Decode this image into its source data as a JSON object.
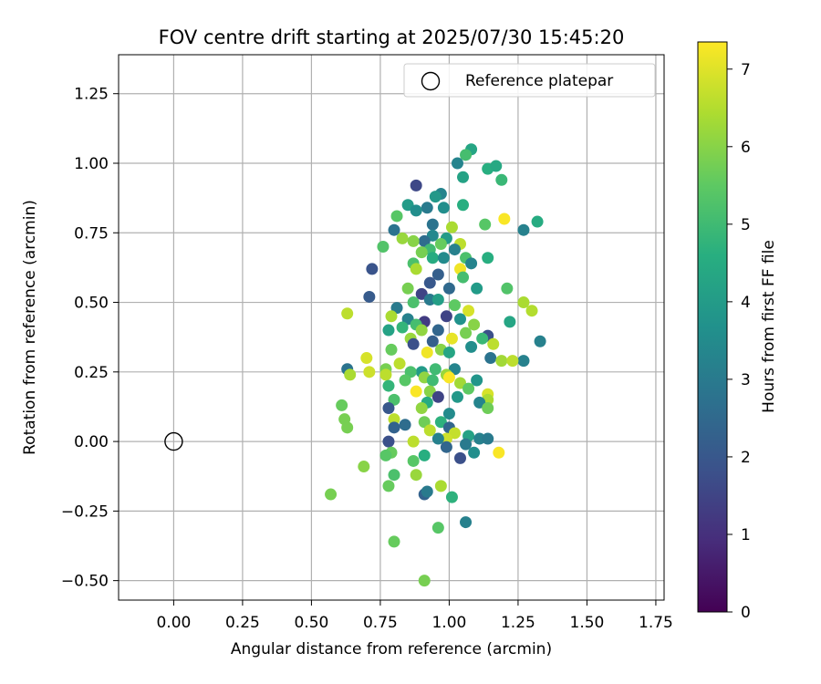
{
  "chart_data": {
    "type": "scatter",
    "title": "FOV centre drift starting at 2025/07/30 15:45:20",
    "xlabel": "Angular distance from reference (arcmin)",
    "ylabel": "Rotation from reference (arcmin)",
    "xlim": [
      -0.2,
      1.78
    ],
    "ylim": [
      -0.57,
      1.39
    ],
    "xticks": [
      0.0,
      0.25,
      0.5,
      0.75,
      1.0,
      1.25,
      1.5,
      1.75
    ],
    "xtick_labels": [
      "0.00",
      "0.25",
      "0.50",
      "0.75",
      "1.00",
      "1.25",
      "1.50",
      "1.75"
    ],
    "yticks": [
      -0.5,
      -0.25,
      0.0,
      0.25,
      0.5,
      0.75,
      1.0,
      1.25
    ],
    "ytick_labels": [
      "−0.50",
      "−0.25",
      "0.00",
      "0.25",
      "0.50",
      "0.75",
      "1.00",
      "1.25"
    ],
    "grid": true,
    "legend": {
      "placement": "top-right",
      "entries": [
        "Reference platepar"
      ]
    },
    "reference_point": {
      "label": "Reference platepar",
      "x": 0.0,
      "y": 0.0
    },
    "colorbar": {
      "label": "Hours from first FF file",
      "min": 0,
      "max": 7.35,
      "colormap": "viridis",
      "ticks": [
        0,
        1,
        2,
        3,
        4,
        5,
        6,
        7
      ],
      "tick_labels": [
        "0",
        "1",
        "2",
        "3",
        "4",
        "5",
        "6",
        "7"
      ]
    },
    "points": [
      [
        1.08,
        1.05,
        4.3
      ],
      [
        1.06,
        1.03,
        5.1
      ],
      [
        1.03,
        1.0,
        3.3
      ],
      [
        1.14,
        0.98,
        4.6
      ],
      [
        1.19,
        0.94,
        4.9
      ],
      [
        1.17,
        0.99,
        4.4
      ],
      [
        0.88,
        0.92,
        1.6
      ],
      [
        0.97,
        0.89,
        3.3
      ],
      [
        0.95,
        0.88,
        3.9
      ],
      [
        1.05,
        0.95,
        4.2
      ],
      [
        0.85,
        0.85,
        4.0
      ],
      [
        1.05,
        0.85,
        4.6
      ],
      [
        0.92,
        0.84,
        3.0
      ],
      [
        0.98,
        0.84,
        3.6
      ],
      [
        0.81,
        0.81,
        5.4
      ],
      [
        0.88,
        0.83,
        3.6
      ],
      [
        1.32,
        0.79,
        4.5
      ],
      [
        1.2,
        0.8,
        7.3
      ],
      [
        1.13,
        0.78,
        5.4
      ],
      [
        0.94,
        0.78,
        2.8
      ],
      [
        0.8,
        0.76,
        2.8
      ],
      [
        1.01,
        0.77,
        6.4
      ],
      [
        1.27,
        0.76,
        3.2
      ],
      [
        0.94,
        0.74,
        3.4
      ],
      [
        0.83,
        0.73,
        6.2
      ],
      [
        0.99,
        0.73,
        4.0
      ],
      [
        0.91,
        0.72,
        2.6
      ],
      [
        1.04,
        0.71,
        6.6
      ],
      [
        0.76,
        0.7,
        5.3
      ],
      [
        0.87,
        0.72,
        6.0
      ],
      [
        0.93,
        0.69,
        5.0
      ],
      [
        0.97,
        0.71,
        5.6
      ],
      [
        1.02,
        0.69,
        3.2
      ],
      [
        0.9,
        0.68,
        5.8
      ],
      [
        0.94,
        0.66,
        4.5
      ],
      [
        1.06,
        0.66,
        5.2
      ],
      [
        1.14,
        0.66,
        4.6
      ],
      [
        0.98,
        0.66,
        3.5
      ],
      [
        1.08,
        0.64,
        3.3
      ],
      [
        0.87,
        0.64,
        5.2
      ],
      [
        1.04,
        0.62,
        7.2
      ],
      [
        0.72,
        0.62,
        1.9
      ],
      [
        0.88,
        0.62,
        6.4
      ],
      [
        0.96,
        0.6,
        2.2
      ],
      [
        1.05,
        0.59,
        5.1
      ],
      [
        1.21,
        0.55,
        5.3
      ],
      [
        0.93,
        0.57,
        2.0
      ],
      [
        0.85,
        0.55,
        5.8
      ],
      [
        1.0,
        0.55,
        2.5
      ],
      [
        1.1,
        0.55,
        4.0
      ],
      [
        0.9,
        0.53,
        1.5
      ],
      [
        0.71,
        0.52,
        2.1
      ],
      [
        1.27,
        0.5,
        6.4
      ],
      [
        0.87,
        0.5,
        5.2
      ],
      [
        0.93,
        0.51,
        3.0
      ],
      [
        1.02,
        0.49,
        5.5
      ],
      [
        0.96,
        0.51,
        4.1
      ],
      [
        0.81,
        0.48,
        3.0
      ],
      [
        1.07,
        0.47,
        6.9
      ],
      [
        1.3,
        0.47,
        6.5
      ],
      [
        0.63,
        0.46,
        6.6
      ],
      [
        0.99,
        0.45,
        1.5
      ],
      [
        0.79,
        0.45,
        6.4
      ],
      [
        0.85,
        0.44,
        3.2
      ],
      [
        1.04,
        0.44,
        3.7
      ],
      [
        0.91,
        0.43,
        1.3
      ],
      [
        1.22,
        0.43,
        4.3
      ],
      [
        0.88,
        0.42,
        5.1
      ],
      [
        1.09,
        0.42,
        6.0
      ],
      [
        0.83,
        0.41,
        4.8
      ],
      [
        0.96,
        0.4,
        2.4
      ],
      [
        0.9,
        0.4,
        6.1
      ],
      [
        1.06,
        0.39,
        5.8
      ],
      [
        0.78,
        0.4,
        4.2
      ],
      [
        1.14,
        0.38,
        1.8
      ],
      [
        1.01,
        0.37,
        7.1
      ],
      [
        0.86,
        0.37,
        6.2
      ],
      [
        1.12,
        0.37,
        4.9
      ],
      [
        0.94,
        0.36,
        2.2
      ],
      [
        1.33,
        0.36,
        3.2
      ],
      [
        0.87,
        0.35,
        1.8
      ],
      [
        1.08,
        0.34,
        3.6
      ],
      [
        1.16,
        0.35,
        6.6
      ],
      [
        0.79,
        0.33,
        5.6
      ],
      [
        0.97,
        0.33,
        6.0
      ],
      [
        1.0,
        0.32,
        4.3
      ],
      [
        0.92,
        0.32,
        7.2
      ],
      [
        1.15,
        0.3,
        2.8
      ],
      [
        1.27,
        0.29,
        3.2
      ],
      [
        0.7,
        0.3,
        6.9
      ],
      [
        1.19,
        0.29,
        6.3
      ],
      [
        0.82,
        0.28,
        6.6
      ],
      [
        1.23,
        0.29,
        6.6
      ],
      [
        0.63,
        0.26,
        2.8
      ],
      [
        0.77,
        0.26,
        5.8
      ],
      [
        0.95,
        0.26,
        5.0
      ],
      [
        1.02,
        0.26,
        3.3
      ],
      [
        0.9,
        0.25,
        4.0
      ],
      [
        0.71,
        0.25,
        6.8
      ],
      [
        0.86,
        0.25,
        5.2
      ],
      [
        0.99,
        0.24,
        6.2
      ],
      [
        0.77,
        0.24,
        6.6
      ],
      [
        1.1,
        0.22,
        3.8
      ],
      [
        0.91,
        0.23,
        6.1
      ],
      [
        0.64,
        0.24,
        6.4
      ],
      [
        1.0,
        0.23,
        7.3
      ],
      [
        0.84,
        0.22,
        5.4
      ],
      [
        0.94,
        0.22,
        5.0
      ],
      [
        1.04,
        0.21,
        6.3
      ],
      [
        0.78,
        0.2,
        4.8
      ],
      [
        1.07,
        0.19,
        5.5
      ],
      [
        0.88,
        0.18,
        7.3
      ],
      [
        0.93,
        0.18,
        6.0
      ],
      [
        1.14,
        0.17,
        6.9
      ],
      [
        0.96,
        0.16,
        1.5
      ],
      [
        1.03,
        0.16,
        3.9
      ],
      [
        0.8,
        0.15,
        5.2
      ],
      [
        1.14,
        0.15,
        6.4
      ],
      [
        0.92,
        0.14,
        4.5
      ],
      [
        1.11,
        0.14,
        3.3
      ],
      [
        0.61,
        0.13,
        5.6
      ],
      [
        1.14,
        0.12,
        5.7
      ],
      [
        0.78,
        0.12,
        2.0
      ],
      [
        0.9,
        0.12,
        6.1
      ],
      [
        1.0,
        0.1,
        3.5
      ],
      [
        0.8,
        0.08,
        6.6
      ],
      [
        0.62,
        0.08,
        5.8
      ],
      [
        0.97,
        0.07,
        4.7
      ],
      [
        0.91,
        0.07,
        5.7
      ],
      [
        0.84,
        0.06,
        2.6
      ],
      [
        0.8,
        0.05,
        2.3
      ],
      [
        0.93,
        0.04,
        6.6
      ],
      [
        1.0,
        0.05,
        2.4
      ],
      [
        0.63,
        0.05,
        5.8
      ],
      [
        1.02,
        0.03,
        6.7
      ],
      [
        1.07,
        0.02,
        4.2
      ],
      [
        1.11,
        0.01,
        3.2
      ],
      [
        0.99,
        0.01,
        6.8
      ],
      [
        0.96,
        0.01,
        3.2
      ],
      [
        0.78,
        0.0,
        1.8
      ],
      [
        0.87,
        0.0,
        6.6
      ],
      [
        1.14,
        0.01,
        3.0
      ],
      [
        1.06,
        -0.01,
        3.0
      ],
      [
        0.99,
        -0.02,
        2.4
      ],
      [
        0.79,
        -0.04,
        5.6
      ],
      [
        1.18,
        -0.04,
        7.3
      ],
      [
        1.09,
        -0.04,
        3.6
      ],
      [
        0.77,
        -0.05,
        5.4
      ],
      [
        0.91,
        -0.05,
        4.6
      ],
      [
        1.04,
        -0.06,
        1.8
      ],
      [
        0.87,
        -0.07,
        5.4
      ],
      [
        0.69,
        -0.09,
        6.0
      ],
      [
        0.88,
        -0.12,
        6.2
      ],
      [
        0.8,
        -0.12,
        5.2
      ],
      [
        0.78,
        -0.16,
        5.6
      ],
      [
        0.97,
        -0.16,
        6.4
      ],
      [
        0.91,
        -0.19,
        2.3
      ],
      [
        0.92,
        -0.18,
        3.0
      ],
      [
        0.57,
        -0.19,
        5.8
      ],
      [
        1.01,
        -0.2,
        4.7
      ],
      [
        0.96,
        -0.31,
        5.4
      ],
      [
        1.06,
        -0.29,
        3.2
      ],
      [
        0.8,
        -0.36,
        5.6
      ],
      [
        0.91,
        -0.5,
        5.8
      ]
    ]
  }
}
